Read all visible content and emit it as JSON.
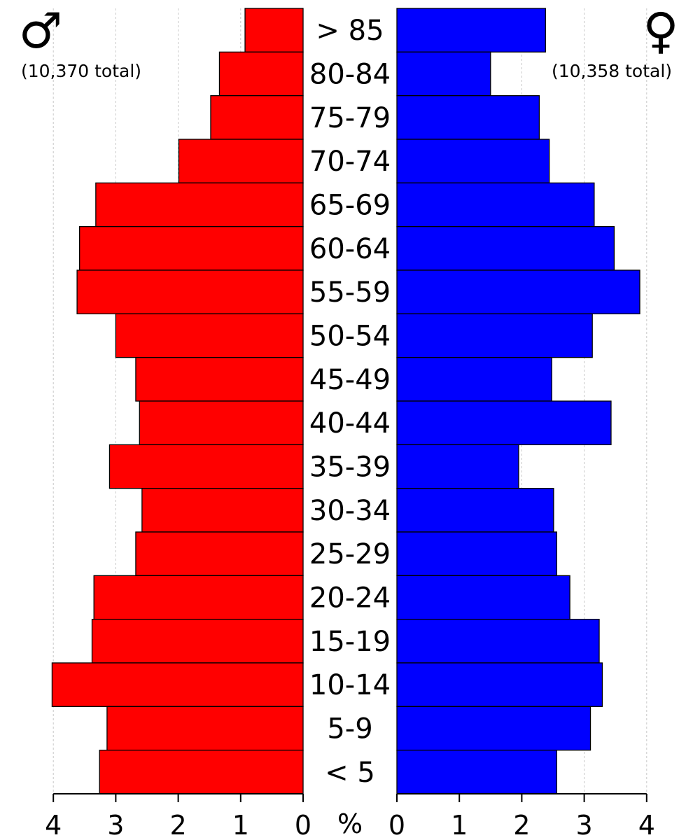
{
  "chart_data": {
    "type": "bar",
    "orientation": "population-pyramid",
    "categories": [
      "> 85",
      "80-84",
      "75-79",
      "70-74",
      "65-69",
      "60-64",
      "55-59",
      "50-54",
      "45-49",
      "40-44",
      "35-39",
      "30-34",
      "25-29",
      "20-24",
      "15-19",
      "10-14",
      "5-9",
      "< 5"
    ],
    "series": [
      {
        "symbol": "♂",
        "total_label": "(10,370 total)",
        "color": "#ff0000",
        "side": "left",
        "values": [
          0.93,
          1.34,
          1.48,
          1.99,
          3.32,
          3.58,
          3.62,
          3.0,
          2.68,
          2.62,
          3.1,
          2.58,
          2.68,
          3.35,
          3.38,
          4.02,
          3.14,
          3.26
        ]
      },
      {
        "symbol": "♀",
        "total_label": "(10,358 total)",
        "color": "#0000ff",
        "side": "right",
        "values": [
          2.38,
          1.5,
          2.28,
          2.44,
          3.16,
          3.48,
          3.89,
          3.13,
          2.48,
          3.43,
          1.95,
          2.51,
          2.56,
          2.77,
          3.24,
          3.29,
          3.1,
          2.56
        ]
      }
    ],
    "xlim": [
      0,
      4
    ],
    "xticks": [
      "0",
      "1",
      "2",
      "3",
      "4"
    ],
    "unit_label": "%",
    "grid": true
  }
}
